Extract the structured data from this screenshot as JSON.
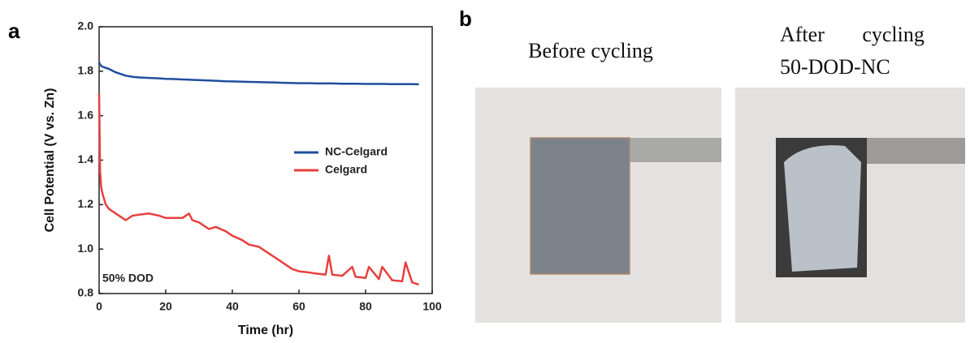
{
  "chart_data": {
    "type": "line",
    "x_label": "Time (hr)",
    "y_label": "Cell Potential (V vs. Zn)",
    "annotation": "50% DOD",
    "xlim": [
      0,
      100
    ],
    "xticks": [
      0,
      20,
      40,
      60,
      80,
      100
    ],
    "ylim": [
      0.8,
      2.0
    ],
    "yticks": [
      0.8,
      {
        "value": 1,
        "label": "1.0"
      },
      1.2,
      1.4,
      1.6,
      1.8,
      {
        "value": 2,
        "label": "2.0"
      }
    ],
    "legend": "right",
    "x": [
      0,
      0.3,
      0.6,
      1,
      2,
      3,
      5,
      7,
      8,
      10,
      12,
      15,
      18,
      20,
      22,
      25,
      27,
      28,
      30,
      33,
      35,
      38,
      40,
      43,
      45,
      48,
      50,
      53,
      55,
      58,
      60,
      63,
      65,
      68,
      69,
      70,
      73,
      76,
      77,
      80,
      81,
      84,
      85,
      88,
      91,
      92,
      94,
      96
    ],
    "series": [
      {
        "name": "NC-Celgard",
        "color": "#1f4e9c",
        "values": [
          1.84,
          1.83,
          1.825,
          1.82,
          1.815,
          1.81,
          1.795,
          1.785,
          1.78,
          1.775,
          1.772,
          1.77,
          1.768,
          1.766,
          1.765,
          1.763,
          1.762,
          1.761,
          1.76,
          1.758,
          1.757,
          1.755,
          1.754,
          1.753,
          1.752,
          1.751,
          1.75,
          1.749,
          1.748,
          1.747,
          1.746,
          1.746,
          1.745,
          1.745,
          1.745,
          1.745,
          1.744,
          1.744,
          1.744,
          1.743,
          1.743,
          1.743,
          1.743,
          1.742,
          1.742,
          1.742,
          1.742,
          1.741
        ]
      },
      {
        "name": "Celgard",
        "color": "#e8403f",
        "values": [
          1.7,
          1.35,
          1.28,
          1.25,
          1.2,
          1.18,
          1.16,
          1.14,
          1.13,
          1.15,
          1.155,
          1.16,
          1.15,
          1.14,
          1.14,
          1.14,
          1.16,
          1.13,
          1.12,
          1.09,
          1.1,
          1.08,
          1.06,
          1.04,
          1.02,
          1.01,
          0.99,
          0.96,
          0.94,
          0.91,
          0.9,
          0.895,
          0.89,
          0.885,
          0.97,
          0.885,
          0.88,
          0.92,
          0.875,
          0.87,
          0.92,
          0.865,
          0.92,
          0.86,
          0.855,
          0.94,
          0.85,
          0.84
        ]
      }
    ]
  },
  "panel_labels": [
    "a",
    "b"
  ],
  "photos": [
    {
      "caption": [
        "Before cycling"
      ]
    },
    {
      "caption": [
        "After cycling",
        "50-DOD-NC"
      ]
    }
  ]
}
